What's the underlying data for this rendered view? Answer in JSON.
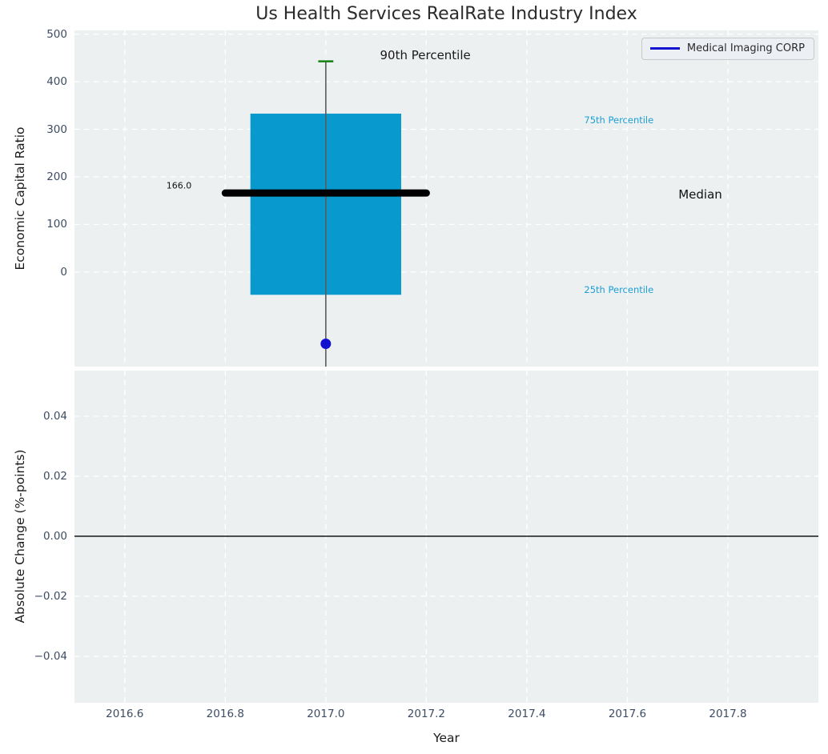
{
  "figure": {
    "title": "Us Health Services RealRate Industry Index",
    "bg": "#ffffff",
    "axes_bg": "#ecf0f1",
    "tick_color": "#3d4c63"
  },
  "legend": {
    "label": "Medical Imaging CORP",
    "line_color": "#1212d0"
  },
  "chart_data": {
    "type": "boxplot",
    "title": "Us Health Services RealRate Industry Index",
    "xlabel": "Year",
    "xlim": [
      2016.5,
      2017.98
    ],
    "xticks": [
      {
        "v": 2016.6,
        "label": "2016.6"
      },
      {
        "v": 2016.8,
        "label": "2016.8"
      },
      {
        "v": 2017.0,
        "label": "2017.0"
      },
      {
        "v": 2017.2,
        "label": "2017.2"
      },
      {
        "v": 2017.4,
        "label": "2017.4"
      },
      {
        "v": 2017.6,
        "label": "2017.6"
      },
      {
        "v": 2017.8,
        "label": "2017.8"
      }
    ],
    "grid": {
      "color": "#ffffff",
      "dash": "6.5 5.5",
      "width": 1.3
    },
    "subplots": [
      {
        "name": "industry-distribution",
        "ylabel": "Economic Capital Ratio",
        "ylim": [
          -199,
          508
        ],
        "yticks": [
          {
            "v": 0,
            "label": "0"
          },
          {
            "v": 100,
            "label": "100"
          },
          {
            "v": 200,
            "label": "200"
          },
          {
            "v": 300,
            "label": "300"
          },
          {
            "v": 400,
            "label": "400"
          },
          {
            "v": 500,
            "label": "500"
          }
        ],
        "boxplot": {
          "x_center": 2017.0,
          "box_x_left": 2016.85,
          "box_x_right": 2017.15,
          "q25": -48,
          "q75": 333,
          "median": 166.0,
          "median_x_left": 2016.8,
          "median_x_right": 2017.2,
          "median_line_width": 9,
          "p90_cap": 443,
          "cap_x_left": 2016.985,
          "cap_x_right": 2017.015,
          "whisker_clipped_below": true,
          "box_color": "#0899cf",
          "median_color": "#000000",
          "whisker_color": "#5b5b5b",
          "cap_color": "#128012"
        },
        "company_point": {
          "name": "Medical Imaging CORP",
          "x": 2017.0,
          "y": -151,
          "color": "#1212d0",
          "radius": 6.5
        },
        "annotations": [
          {
            "x": 2017.198,
            "y": 456,
            "label": "90th Percentile",
            "color": "#1a1a1a",
            "size": 15
          },
          {
            "x": 2017.583,
            "y": 320,
            "label": "75th Percentile",
            "color": "#1d9fd6",
            "size": 11.5
          },
          {
            "x": 2017.745,
            "y": 163,
            "label": "Median",
            "color": "#111111",
            "size": 15
          },
          {
            "x": 2017.583,
            "y": -37,
            "label": "25th Percentile",
            "color": "#1d9fd6",
            "size": 11.5
          },
          {
            "x": 2016.708,
            "y": 182,
            "label": "166.0",
            "color": "#111111",
            "size": 11
          }
        ]
      },
      {
        "name": "absolute-change",
        "ylabel": "Absolute Change (%-points)",
        "ylim": [
          -0.0555,
          0.0552
        ],
        "yticks": [
          {
            "v": 0.04,
            "label": "0.04"
          },
          {
            "v": 0.02,
            "label": "0.02"
          },
          {
            "v": 0.0,
            "label": "0.00"
          },
          {
            "v": -0.02,
            "label": "−0.02"
          },
          {
            "v": -0.04,
            "label": "−0.04"
          }
        ],
        "zero_line": {
          "y": 0.0,
          "color": "#000000",
          "width": 1.4
        }
      }
    ]
  }
}
